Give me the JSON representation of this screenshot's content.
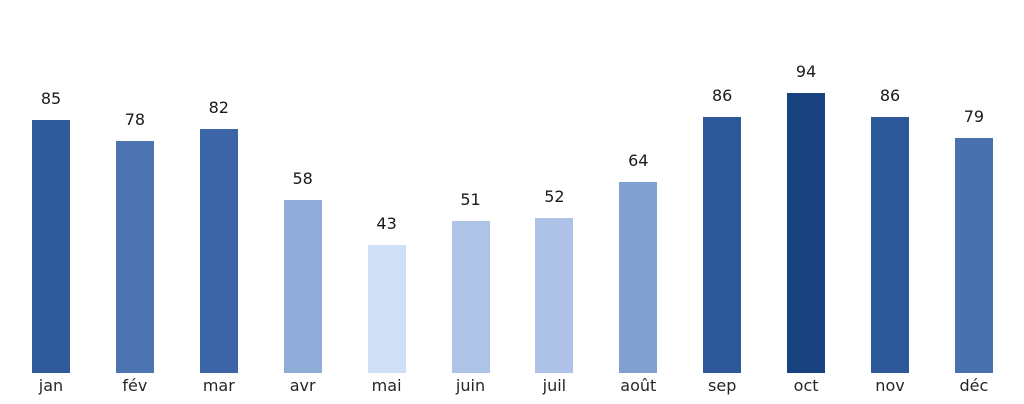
{
  "chart_data": {
    "type": "bar",
    "title": "",
    "xlabel": "",
    "ylabel": "",
    "categories": [
      "jan",
      "fév",
      "mar",
      "avr",
      "mai",
      "juin",
      "juil",
      "août",
      "sep",
      "oct",
      "nov",
      "déc"
    ],
    "values": [
      85,
      78,
      82,
      58,
      43,
      51,
      52,
      64,
      86,
      94,
      86,
      79
    ],
    "bar_colors": [
      "#2f5b9b",
      "#4d74b0",
      "#3c65a8",
      "#90acd8",
      "#cfdff6",
      "#aec3e6",
      "#adc2e6",
      "#7fa0d1",
      "#2d599b",
      "#17417f",
      "#2d599b",
      "#4871ad"
    ],
    "color_mapping": "sequential-blues-by-value",
    "background_color": "#ffffff",
    "value_label_color": "#1a1a1a",
    "tick_label_color": "#262626",
    "ylim": [
      0,
      100
    ],
    "grid": false,
    "legend": "none",
    "axes_visible": false,
    "value_labels_shown": true
  }
}
